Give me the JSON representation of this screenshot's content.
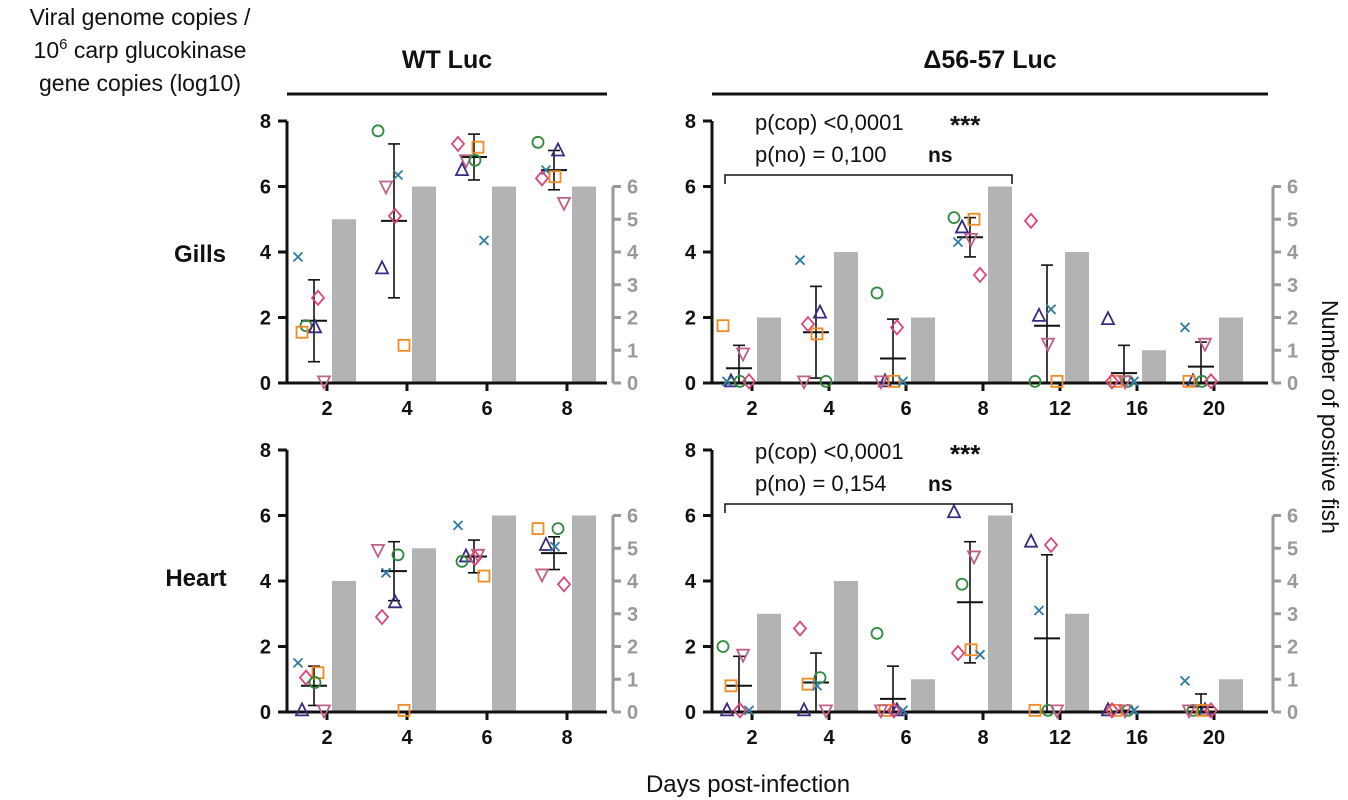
{
  "figure": {
    "left_axis_label": [
      "Viral genome copies /",
      "10",
      "6",
      " carp glucokinase",
      "gene copies (log10)"
    ],
    "right_axis_label": "Number of positive fish",
    "x_axis_label": "Days post-infection",
    "column_titles": [
      "WT Luc",
      "Δ56-57 Luc"
    ],
    "row_labels": [
      "Gills",
      "Heart"
    ],
    "colors": {
      "bar": "#b3b3b3",
      "right_axis": "#999999",
      "mean_sd": "#111111",
      "markers": {
        "cross": "#2e7ca3",
        "circle": "#2e8b3c",
        "diamond": "#d9467a",
        "tri_down": "#c0608a",
        "square": "#f08a24",
        "tri_up": "#3b2a80"
      }
    }
  },
  "chart_data": [
    {
      "type": "bar",
      "panel": "Gills - WT Luc",
      "categories": [
        "2",
        "4",
        "6",
        "8"
      ],
      "bars_positive_fish": [
        5,
        6,
        6,
        6
      ],
      "y2lim": [
        0,
        6
      ],
      "ylim": [
        0,
        8
      ],
      "yticks": [
        0,
        2,
        4,
        6,
        8
      ],
      "y2ticks": [
        0,
        1,
        2,
        3,
        4,
        5,
        6
      ],
      "mean": [
        1.9,
        4.95,
        6.9,
        6.5
      ],
      "sd": [
        1.25,
        2.35,
        0.7,
        0.6
      ],
      "points": [
        [
          {
            "m": "cross",
            "v": 3.85
          },
          {
            "m": "diamond",
            "v": 2.6
          },
          {
            "m": "circle",
            "v": 1.75
          },
          {
            "m": "tri_up",
            "v": 1.7
          },
          {
            "m": "square",
            "v": 1.55
          },
          {
            "m": "tri_down",
            "v": 0.05
          }
        ],
        [
          {
            "m": "circle",
            "v": 7.7
          },
          {
            "m": "cross",
            "v": 6.35
          },
          {
            "m": "tri_down",
            "v": 6.0
          },
          {
            "m": "diamond",
            "v": 5.1
          },
          {
            "m": "tri_up",
            "v": 3.5
          },
          {
            "m": "square",
            "v": 1.15
          }
        ],
        [
          {
            "m": "diamond",
            "v": 7.3
          },
          {
            "m": "square",
            "v": 7.2
          },
          {
            "m": "tri_down",
            "v": 6.8
          },
          {
            "m": "circle",
            "v": 6.8
          },
          {
            "m": "tri_up",
            "v": 6.5
          },
          {
            "m": "cross",
            "v": 4.35
          }
        ],
        [
          {
            "m": "circle",
            "v": 7.35
          },
          {
            "m": "tri_up",
            "v": 7.1
          },
          {
            "m": "cross",
            "v": 6.5
          },
          {
            "m": "square",
            "v": 6.3
          },
          {
            "m": "diamond",
            "v": 6.25
          },
          {
            "m": "tri_down",
            "v": 5.5
          }
        ]
      ]
    },
    {
      "type": "bar",
      "panel": "Gills - Δ56-57 Luc",
      "categories": [
        "2",
        "4",
        "6",
        "8",
        "12",
        "16",
        "20"
      ],
      "bars_positive_fish": [
        2,
        4,
        2,
        6,
        4,
        1,
        2
      ],
      "y2lim": [
        0,
        6
      ],
      "ylim": [
        0,
        8
      ],
      "yticks": [
        0,
        2,
        4,
        6,
        8
      ],
      "y2ticks": [
        0,
        1,
        2,
        3,
        4,
        5,
        6
      ],
      "mean": [
        0.45,
        1.55,
        0.75,
        4.45,
        1.75,
        0.3,
        0.5
      ],
      "sd": [
        0.7,
        1.4,
        1.2,
        0.6,
        1.85,
        0.85,
        0.75
      ],
      "points": [
        [
          {
            "m": "square",
            "v": 1.75
          },
          {
            "m": "tri_down",
            "v": 0.9
          },
          {
            "m": "tri_up",
            "v": 0.05
          },
          {
            "m": "circle",
            "v": 0.05
          },
          {
            "m": "cross",
            "v": 0.05
          },
          {
            "m": "diamond",
            "v": 0.05
          }
        ],
        [
          {
            "m": "cross",
            "v": 3.75
          },
          {
            "m": "tri_up",
            "v": 2.15
          },
          {
            "m": "diamond",
            "v": 1.8
          },
          {
            "m": "square",
            "v": 1.5
          },
          {
            "m": "tri_down",
            "v": 0.05
          },
          {
            "m": "circle",
            "v": 0.05
          }
        ],
        [
          {
            "m": "circle",
            "v": 2.75
          },
          {
            "m": "diamond",
            "v": 1.7
          },
          {
            "m": "tri_up",
            "v": 0.05
          },
          {
            "m": "square",
            "v": 0.05
          },
          {
            "m": "tri_down",
            "v": 0.05
          },
          {
            "m": "cross",
            "v": 0.05
          }
        ],
        [
          {
            "m": "circle",
            "v": 5.05
          },
          {
            "m": "square",
            "v": 5.0
          },
          {
            "m": "tri_up",
            "v": 4.75
          },
          {
            "m": "tri_down",
            "v": 4.4
          },
          {
            "m": "cross",
            "v": 4.3
          },
          {
            "m": "diamond",
            "v": 3.3
          }
        ],
        [
          {
            "m": "diamond",
            "v": 4.95
          },
          {
            "m": "cross",
            "v": 2.25
          },
          {
            "m": "tri_up",
            "v": 2.05
          },
          {
            "m": "tri_down",
            "v": 1.2
          },
          {
            "m": "circle",
            "v": 0.05
          },
          {
            "m": "square",
            "v": 0.05
          }
        ],
        [
          {
            "m": "tri_up",
            "v": 1.95
          },
          {
            "m": "circle",
            "v": 0.05
          },
          {
            "m": "square",
            "v": 0.05
          },
          {
            "m": "tri_down",
            "v": 0.05
          },
          {
            "m": "diamond",
            "v": 0.05
          },
          {
            "m": "cross",
            "v": 0.05
          }
        ],
        [
          {
            "m": "cross",
            "v": 1.7
          },
          {
            "m": "tri_down",
            "v": 1.2
          },
          {
            "m": "tri_up",
            "v": 0.05
          },
          {
            "m": "circle",
            "v": 0.05
          },
          {
            "m": "square",
            "v": 0.05
          },
          {
            "m": "diamond",
            "v": 0.05
          }
        ]
      ],
      "annotation": {
        "line1": "p(cop) <0,0001",
        "stars": "***",
        "line2": "p(no) = 0,100",
        "ns": "ns",
        "bracket_from": "2",
        "bracket_to": "8"
      }
    },
    {
      "type": "bar",
      "panel": "Heart - WT Luc",
      "categories": [
        "2",
        "4",
        "6",
        "8"
      ],
      "bars_positive_fish": [
        4,
        5,
        6,
        6
      ],
      "y2lim": [
        0,
        6
      ],
      "ylim": [
        0,
        8
      ],
      "yticks": [
        0,
        2,
        4,
        6,
        8
      ],
      "y2ticks": [
        0,
        1,
        2,
        3,
        4,
        5,
        6
      ],
      "mean": [
        0.8,
        4.3,
        4.75,
        4.85
      ],
      "sd": [
        0.6,
        0.9,
        0.5,
        0.5
      ],
      "points": [
        [
          {
            "m": "cross",
            "v": 1.5
          },
          {
            "m": "square",
            "v": 1.2
          },
          {
            "m": "diamond",
            "v": 1.05
          },
          {
            "m": "circle",
            "v": 0.9
          },
          {
            "m": "tri_up",
            "v": 0.05
          },
          {
            "m": "tri_down",
            "v": 0.05
          }
        ],
        [
          {
            "m": "tri_down",
            "v": 4.95
          },
          {
            "m": "circle",
            "v": 4.8
          },
          {
            "m": "cross",
            "v": 4.25
          },
          {
            "m": "tri_up",
            "v": 3.35
          },
          {
            "m": "diamond",
            "v": 2.9
          },
          {
            "m": "square",
            "v": 0.05
          }
        ],
        [
          {
            "m": "cross",
            "v": 5.7
          },
          {
            "m": "tri_down",
            "v": 4.8
          },
          {
            "m": "tri_up",
            "v": 4.75
          },
          {
            "m": "diamond",
            "v": 4.7
          },
          {
            "m": "circle",
            "v": 4.6
          },
          {
            "m": "square",
            "v": 4.15
          }
        ],
        [
          {
            "m": "square",
            "v": 5.6
          },
          {
            "m": "circle",
            "v": 5.6
          },
          {
            "m": "tri_up",
            "v": 5.1
          },
          {
            "m": "cross",
            "v": 5.05
          },
          {
            "m": "tri_down",
            "v": 4.2
          },
          {
            "m": "diamond",
            "v": 3.9
          }
        ]
      ]
    },
    {
      "type": "bar",
      "panel": "Heart - Δ56-57 Luc",
      "categories": [
        "2",
        "4",
        "6",
        "8",
        "12",
        "16",
        "20"
      ],
      "bars_positive_fish": [
        3,
        4,
        1,
        6,
        3,
        0,
        1
      ],
      "y2lim": [
        0,
        6
      ],
      "ylim": [
        0,
        8
      ],
      "yticks": [
        0,
        2,
        4,
        6,
        8
      ],
      "y2ticks": [
        0,
        1,
        2,
        3,
        4,
        5,
        6
      ],
      "mean": [
        0.8,
        0.9,
        0.4,
        3.35,
        2.25,
        0.0,
        0.15
      ],
      "sd": [
        0.9,
        0.9,
        1.0,
        1.85,
        2.55,
        0.05,
        0.4
      ],
      "points": [
        [
          {
            "m": "circle",
            "v": 2.0
          },
          {
            "m": "tri_down",
            "v": 1.75
          },
          {
            "m": "square",
            "v": 0.8
          },
          {
            "m": "diamond",
            "v": 0.05
          },
          {
            "m": "tri_up",
            "v": 0.05
          },
          {
            "m": "cross",
            "v": 0.05
          }
        ],
        [
          {
            "m": "diamond",
            "v": 2.55
          },
          {
            "m": "circle",
            "v": 1.05
          },
          {
            "m": "square",
            "v": 0.85
          },
          {
            "m": "cross",
            "v": 0.8
          },
          {
            "m": "tri_up",
            "v": 0.05
          },
          {
            "m": "tri_down",
            "v": 0.05
          }
        ],
        [
          {
            "m": "circle",
            "v": 2.4
          },
          {
            "m": "tri_up",
            "v": 0.05
          },
          {
            "m": "square",
            "v": 0.05
          },
          {
            "m": "diamond",
            "v": 0.05
          },
          {
            "m": "tri_down",
            "v": 0.05
          },
          {
            "m": "cross",
            "v": 0.05
          }
        ],
        [
          {
            "m": "tri_up",
            "v": 6.1
          },
          {
            "m": "tri_down",
            "v": 4.75
          },
          {
            "m": "circle",
            "v": 3.9
          },
          {
            "m": "square",
            "v": 1.9
          },
          {
            "m": "diamond",
            "v": 1.8
          },
          {
            "m": "cross",
            "v": 1.75
          }
        ],
        [
          {
            "m": "tri_up",
            "v": 5.2
          },
          {
            "m": "diamond",
            "v": 5.1
          },
          {
            "m": "cross",
            "v": 3.1
          },
          {
            "m": "circle",
            "v": 0.05
          },
          {
            "m": "square",
            "v": 0.05
          },
          {
            "m": "tri_down",
            "v": 0.05
          }
        ],
        [
          {
            "m": "tri_up",
            "v": 0.05
          },
          {
            "m": "circle",
            "v": 0.05
          },
          {
            "m": "square",
            "v": 0.05
          },
          {
            "m": "tri_down",
            "v": 0.05
          },
          {
            "m": "diamond",
            "v": 0.05
          },
          {
            "m": "cross",
            "v": 0.05
          }
        ],
        [
          {
            "m": "cross",
            "v": 0.95
          },
          {
            "m": "tri_up",
            "v": 0.05
          },
          {
            "m": "circle",
            "v": 0.05
          },
          {
            "m": "square",
            "v": 0.05
          },
          {
            "m": "tri_down",
            "v": 0.05
          },
          {
            "m": "diamond",
            "v": 0.05
          }
        ]
      ],
      "annotation": {
        "line1": "p(cop) <0,0001",
        "stars": "***",
        "line2": "p(no) = 0,154",
        "ns": "ns",
        "bracket_from": "2",
        "bracket_to": "8"
      }
    }
  ]
}
